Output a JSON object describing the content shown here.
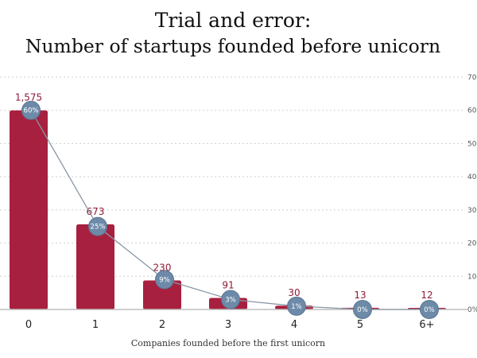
{
  "title_line1": "Trial and error:",
  "title_line2": "Number of startups founded before unicorn",
  "colors": {
    "bar": "#a8203f",
    "marker": "#6d8aa8",
    "marker_stroke": "#5a7592",
    "line": "#8a96a4",
    "count_text": "#8d1a36"
  },
  "chart_data": {
    "type": "bar",
    "title": "Trial and error: Number of startups founded before unicorn",
    "xlabel": "Companies founded before the first unicorn",
    "categories": [
      "0",
      "1",
      "2",
      "3",
      "4",
      "5",
      "6+"
    ],
    "series": [
      {
        "values": [
          1575,
          673,
          230,
          91,
          30,
          13,
          12
        ],
        "axis": "left"
      },
      {
        "values": [
          60,
          25,
          9,
          3,
          1,
          0,
          0
        ],
        "axis": "right",
        "type": "line",
        "labels": [
          "60%",
          "25%",
          "9%",
          "3%",
          "1%",
          "0%",
          "0%"
        ]
      }
    ],
    "count_labels": [
      "1,575",
      "673",
      "230",
      "91",
      "30",
      "13",
      "12"
    ],
    "ylim": [
      0,
      1837.5
    ],
    "y2lim": [
      0,
      70
    ],
    "y2ticks": [
      "70%",
      "60%",
      "50%",
      "40%",
      "30%",
      "20%",
      "10%",
      "0%"
    ],
    "grid": true
  }
}
